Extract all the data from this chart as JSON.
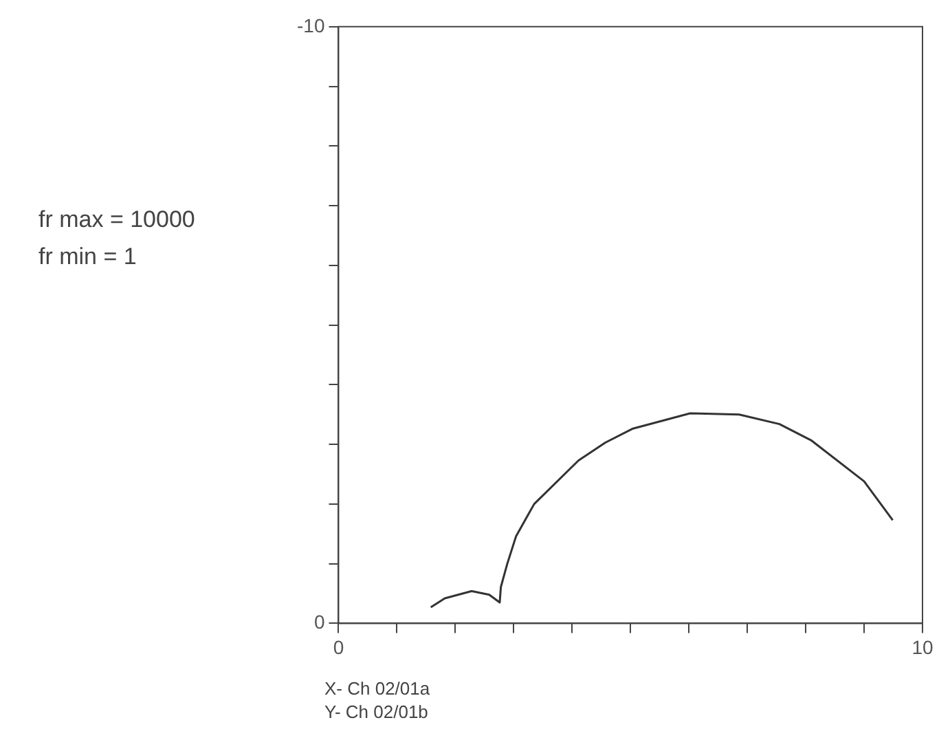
{
  "chart_data": {
    "type": "line",
    "x": [
      1.58,
      1.82,
      2.28,
      2.58,
      2.76,
      2.78,
      2.89,
      3.04,
      3.35,
      4.11,
      4.57,
      5.03,
      6.02,
      6.86,
      7.55,
      8.09,
      9.0,
      9.49
    ],
    "series": [
      {
        "color": "#333333",
        "values": [
          -0.27,
          -0.42,
          -0.54,
          -0.48,
          -0.35,
          -0.61,
          -1.0,
          -1.46,
          -2.0,
          -2.73,
          -3.03,
          -3.26,
          -3.52,
          -3.5,
          -3.34,
          -3.07,
          -2.38,
          -1.73
        ]
      }
    ],
    "xlim": [
      0,
      10
    ],
    "ylim": [
      0,
      -10
    ],
    "xticks": [
      0,
      {
        "value": 1,
        "label": null
      },
      {
        "value": 2,
        "label": null
      },
      {
        "value": 3,
        "label": null
      },
      {
        "value": 4,
        "label": null
      },
      {
        "value": 5,
        "label": null
      },
      {
        "value": 6,
        "label": null
      },
      {
        "value": 7,
        "label": null
      },
      {
        "value": 8,
        "label": null
      },
      {
        "value": 9,
        "label": null
      },
      10
    ],
    "yticks": [
      0,
      {
        "value": -1,
        "label": null
      },
      {
        "value": -2,
        "label": null
      },
      {
        "value": -3,
        "label": null
      },
      {
        "value": -4,
        "label": null
      },
      {
        "value": -5,
        "label": null
      },
      {
        "value": -6,
        "label": null
      },
      {
        "value": -7,
        "label": null
      },
      {
        "value": -8,
        "label": null
      },
      {
        "value": -9,
        "label": null
      },
      -10
    ],
    "annotations": [
      "fr max = 10000",
      "fr min = 1",
      "X- Ch 02/01a",
      "Y- Ch 02/01b"
    ],
    "marker": "none",
    "line_style": "solid",
    "grid": false,
    "legend": false
  }
}
